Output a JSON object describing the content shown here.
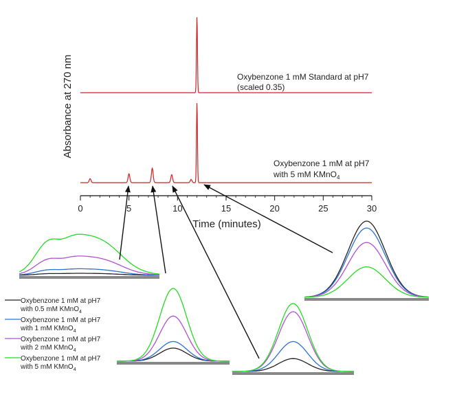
{
  "chart_data": {
    "type": "line",
    "title": "",
    "xlabel": "Time (minutes)",
    "ylabel": "Absorbance at 270 nm",
    "xlim": [
      0,
      30
    ],
    "x_ticks": [
      "0",
      "5",
      "10",
      "15",
      "20",
      "25",
      "30"
    ],
    "x_tick_values": [
      0,
      5,
      10,
      15,
      20,
      25,
      30
    ],
    "main_series": [
      {
        "name": "Oxybenzone 1 mM Standard at pH7",
        "note": "(scaled 0.35)",
        "color": "#d42020",
        "peaks": [
          {
            "time": 12.0,
            "height": 1.0
          }
        ]
      },
      {
        "name": "Oxybenzone 1 mM at pH7",
        "note": "with 5 mM KMnO",
        "note_sub": "4",
        "color": "#d42020",
        "peaks": [
          {
            "time": 1.0,
            "height": 0.05
          },
          {
            "time": 5.0,
            "height": 0.11
          },
          {
            "time": 7.4,
            "height": 0.18
          },
          {
            "time": 9.4,
            "height": 0.1
          },
          {
            "time": 11.4,
            "height": 0.04
          },
          {
            "time": 12.0,
            "height": 1.0
          }
        ]
      }
    ],
    "legend": [
      {
        "line1": "Oxybenzone 1 mM at pH7",
        "line2": "with 0.5 mM KMnO",
        "sub": "4",
        "color": "#222222"
      },
      {
        "line1": "Oxybenzone 1 mM at pH7",
        "line2": "with 1 mM KMnO",
        "sub": "4",
        "color": "#2a6fd6"
      },
      {
        "line1": "Oxybenzone 1 mM at pH7",
        "line2": "with 2 mM KMnO",
        "sub": "4",
        "color": "#b050d0"
      },
      {
        "line1": "Oxybenzone 1 mM at pH7",
        "line2": "with 5 mM KMnO",
        "sub": "4",
        "color": "#22dd22"
      }
    ],
    "insets": [
      {
        "peak_time": 5.0,
        "shape": "broad",
        "values": [
          0.05,
          0.16,
          0.47,
          1.0
        ]
      },
      {
        "peak_time": 7.4,
        "shape": "gauss",
        "values": [
          0.18,
          0.27,
          0.62,
          1.0
        ]
      },
      {
        "peak_time": 9.4,
        "shape": "gauss",
        "values": [
          0.19,
          0.44,
          0.88,
          1.0
        ]
      },
      {
        "peak_time": 12.0,
        "shape": "gauss",
        "values": [
          1.0,
          0.91,
          0.72,
          0.4
        ]
      }
    ]
  }
}
